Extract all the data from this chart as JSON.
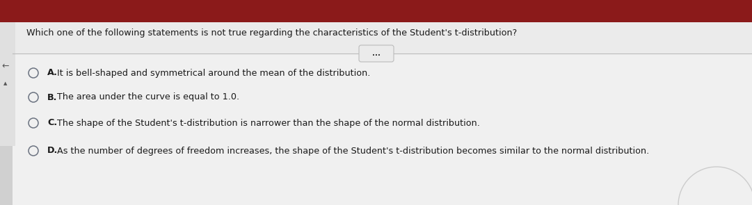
{
  "question": "Which one of the following statements is not true regarding the characteristics of the Student's t-distribution?",
  "options": [
    {
      "label": "A.",
      "text": "It is bell-shaped and symmetrical around the mean of the distribution."
    },
    {
      "label": "B.",
      "text": "The area under the curve is equal to 1.0."
    },
    {
      "label": "C.",
      "text": "The shape of the Student's t-distribution is narrower than the shape of the normal distribution."
    },
    {
      "label": "D.",
      "text": "As the number of degrees of freedom increases, the shape of the Student's t-distribution becomes similar to the normal distribution."
    }
  ],
  "bg_color": "#ffffff",
  "top_bar_color": "#8B1A1A",
  "divider_color": "#bbbbbb",
  "text_color": "#1a1a1a",
  "question_fontsize": 9.2,
  "option_fontsize": 9.2,
  "circle_color": "#6b7280",
  "dots_color": "#333333",
  "left_accent_color": "#8B1A1A",
  "question_bg": "#e8e8e8"
}
